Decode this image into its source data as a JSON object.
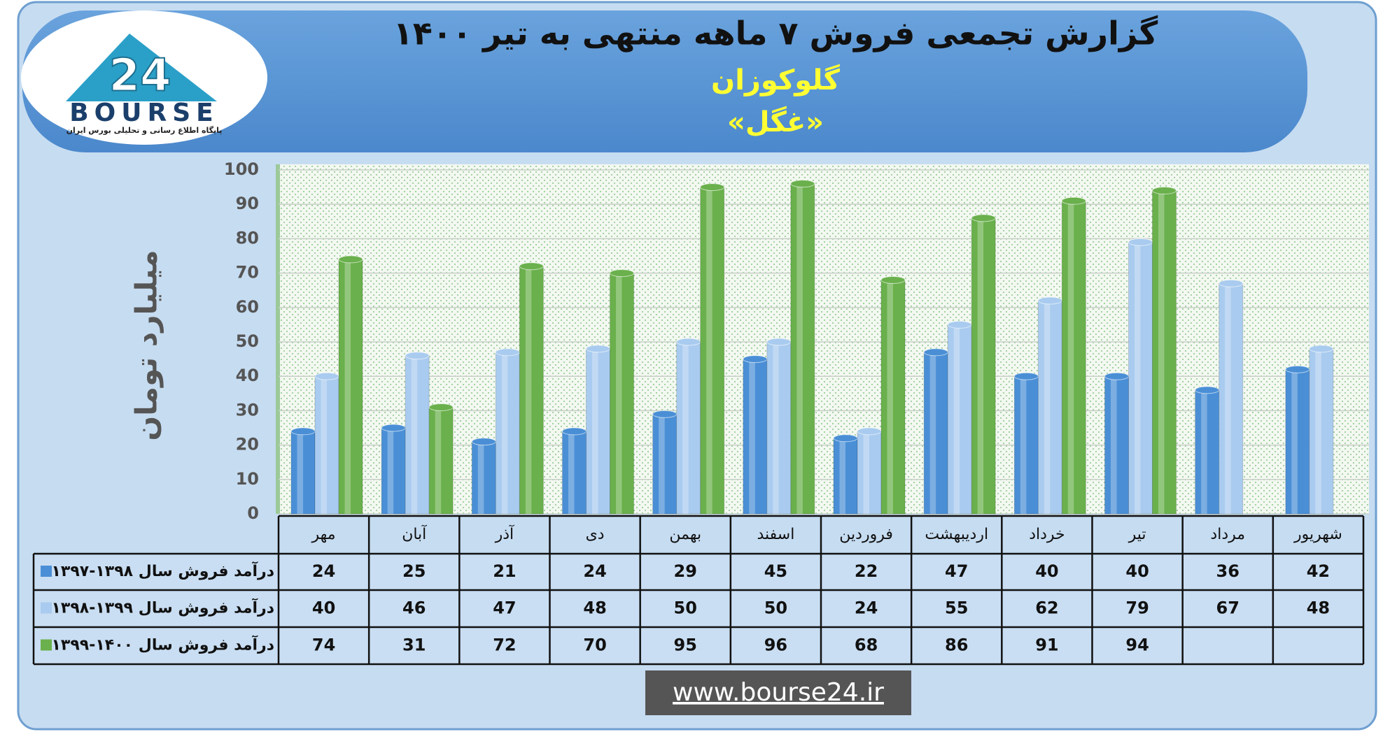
{
  "logo": {
    "number": "24",
    "name": "BOURSE",
    "tagline": "پایگاه اطلاع رسانی و تحلیلی بورس ایران"
  },
  "website": "www.bourse24.ir",
  "chart_data": {
    "type": "bar",
    "title": "گزارش تجمعی فروش ۷ ماهه منتهی به تیر ۱۴۰۰",
    "subtitle": "گلوکوزان",
    "subtitle2": "«غگل»",
    "y_label": "میلیارد تومان",
    "categories": [
      "مهر",
      "آبان",
      "آذر",
      "دی",
      "بهمن",
      "اسفند",
      "فروردین",
      "اردیبهشت",
      "خرداد",
      "تیر",
      "مرداد",
      "شهریور"
    ],
    "series": [
      {
        "name": "درآمد فروش سال ۱۳۹۸-۱۳۹۷",
        "color": "#4a8fd6",
        "values": [
          24,
          25,
          21,
          24,
          29,
          45,
          22,
          47,
          40,
          40,
          36,
          42
        ]
      },
      {
        "name": "درآمد فروش سال ۱۳۹۹-۱۳۹۸",
        "color": "#a9cbef",
        "values": [
          40,
          46,
          47,
          48,
          50,
          50,
          24,
          55,
          62,
          79,
          67,
          48
        ]
      },
      {
        "name": "درآمد فروش سال ۱۴۰۰-۱۳۹۹",
        "color": "#6ab04c",
        "values": [
          74,
          31,
          72,
          70,
          95,
          96,
          68,
          86,
          91,
          94,
          null,
          null
        ]
      }
    ],
    "ylim": [
      0,
      100
    ],
    "yticks": [
      0,
      10,
      20,
      30,
      40,
      50,
      60,
      70,
      80,
      90,
      100
    ],
    "grid": true
  }
}
